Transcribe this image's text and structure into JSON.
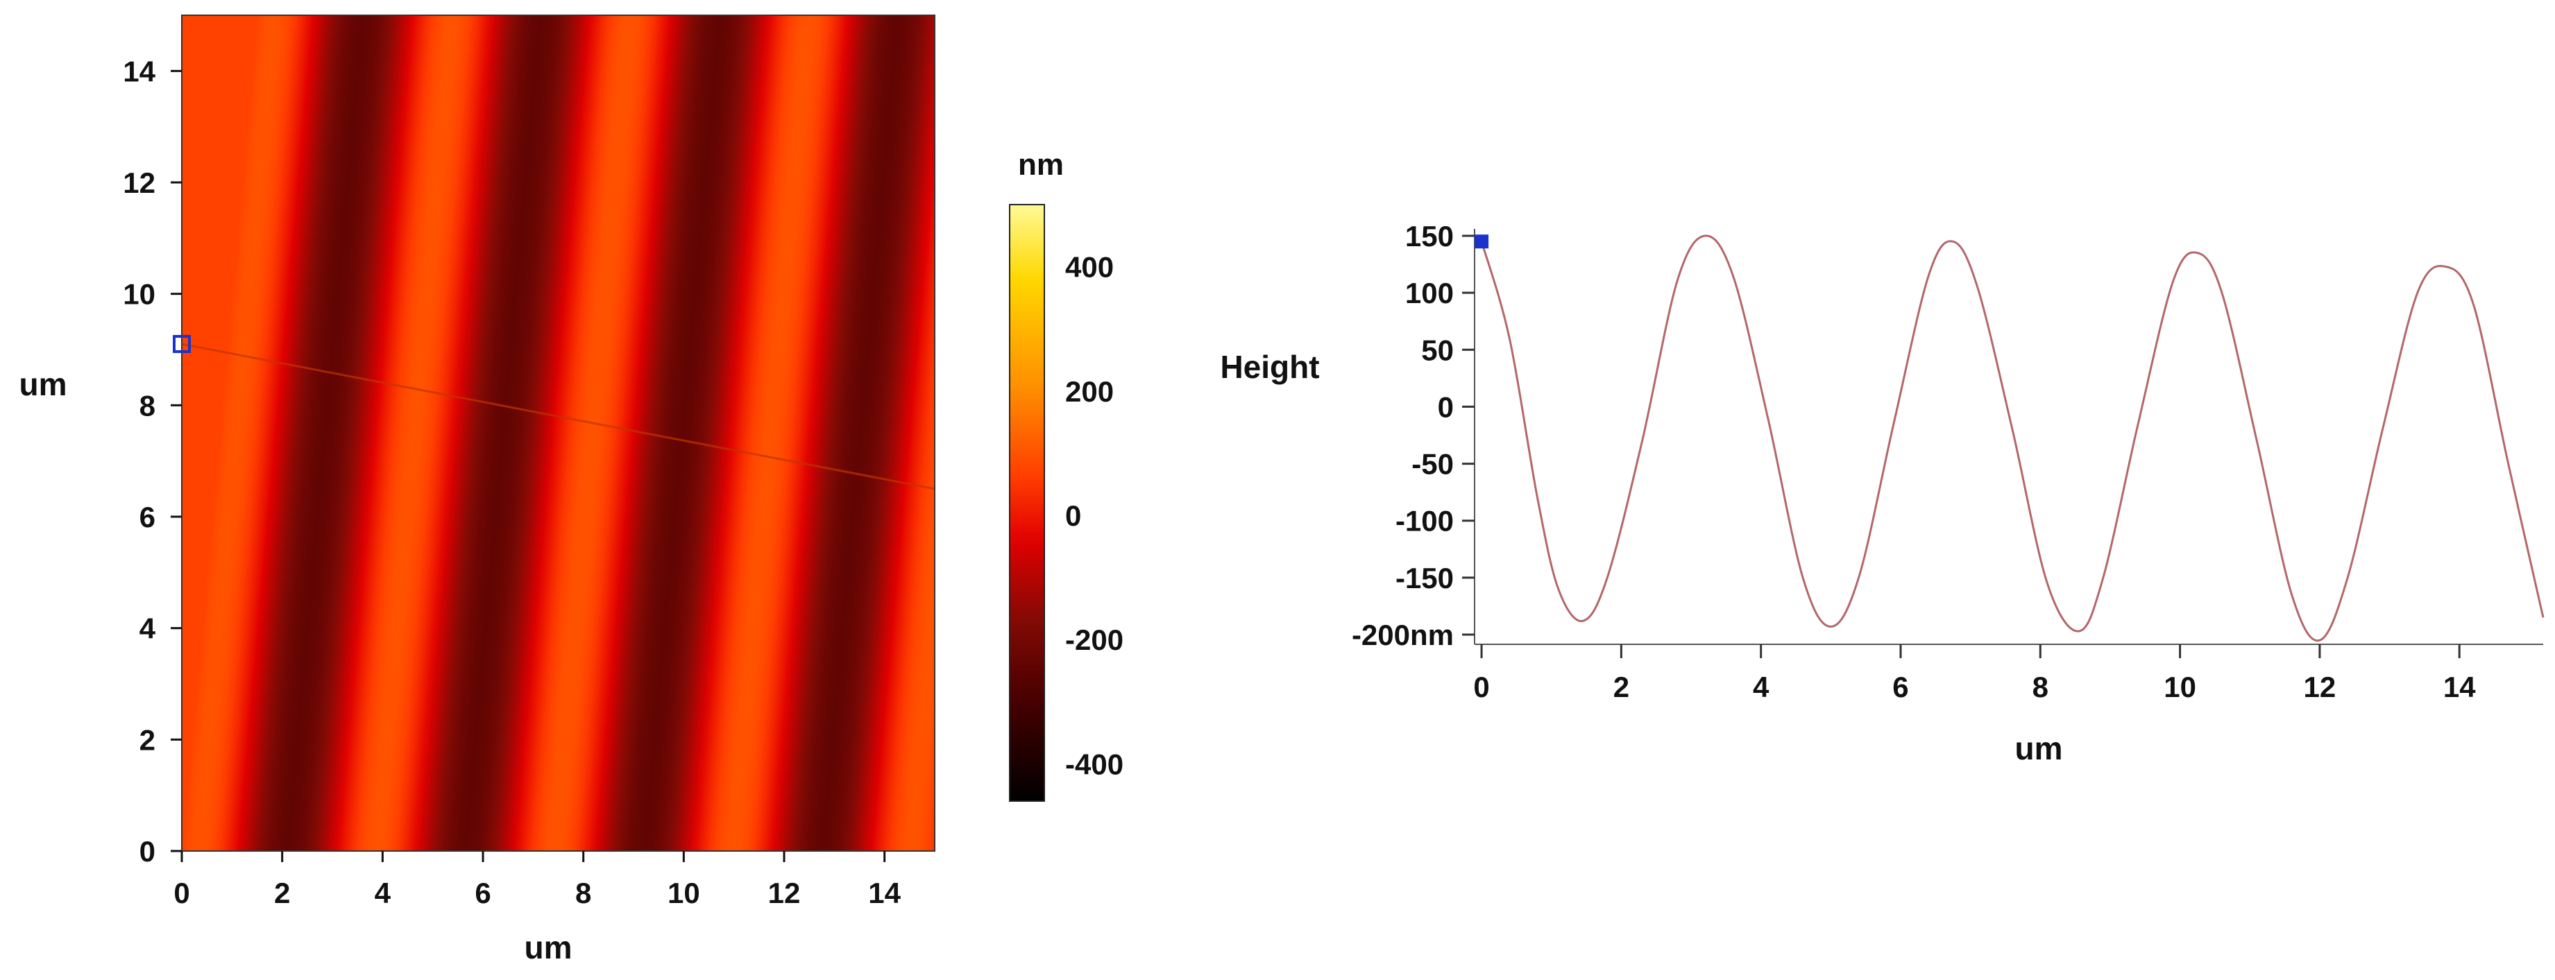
{
  "chart_data": [
    {
      "type": "heatmap",
      "title": "",
      "xlabel": "um",
      "ylabel": "um",
      "xlim": [
        0,
        15
      ],
      "ylim": [
        0,
        15
      ],
      "xticks": [
        0,
        2,
        4,
        6,
        8,
        10,
        12,
        14
      ],
      "yticks": [
        0,
        2,
        4,
        6,
        8,
        10,
        12,
        14
      ],
      "pattern": {
        "description_values": "stripes of height varying sinusoidally across x",
        "period_um": 3.55,
        "amplitude_nm": 170,
        "stripe_slope_x_per_y": 0.1
      },
      "profile_line": {
        "x": [
          0,
          15
        ],
        "y": [
          9.1,
          6.5
        ]
      },
      "marker": {
        "x": 0,
        "y": 9.1,
        "color": "#1a33cc"
      },
      "colorbar": {
        "label": "nm",
        "ticks": [
          400,
          200,
          0,
          -200,
          -400
        ],
        "range": [
          -460,
          500
        ],
        "colors": [
          "#000000",
          "#6a0000",
          "#e10000",
          "#ff4a00",
          "#ff8a00",
          "#ffd200",
          "#fff39a"
        ]
      }
    },
    {
      "type": "line",
      "title": "",
      "xlabel": "um",
      "ylabel": "Height",
      "xlim": [
        -0.1,
        15.2
      ],
      "ylim": [
        -200,
        150
      ],
      "xticks": [
        0,
        2,
        4,
        6,
        8,
        10,
        12,
        14
      ],
      "yticks": [
        150,
        100,
        50,
        0,
        -50,
        -100,
        -150,
        -200
      ],
      "ytick_labels": [
        "150",
        "100",
        "50",
        "0",
        "-50",
        "-100",
        "-150",
        "-200nm"
      ],
      "series": [
        {
          "color": "#b3676b",
          "x": [
            0,
            0.4,
            0.8,
            1.1,
            1.45,
            1.8,
            2.3,
            2.8,
            3.2,
            3.6,
            4.1,
            4.6,
            5.0,
            5.4,
            5.9,
            6.4,
            6.75,
            7.1,
            7.6,
            8.1,
            8.55,
            8.9,
            9.4,
            9.9,
            10.25,
            10.6,
            11.1,
            11.6,
            12.0,
            12.4,
            12.9,
            13.4,
            13.8,
            14.2,
            14.7,
            15.2
          ],
          "y": [
            145,
            60,
            -80,
            -160,
            -188,
            -150,
            -30,
            110,
            150,
            115,
            -10,
            -150,
            -193,
            -150,
            -15,
            115,
            145,
            105,
            -20,
            -155,
            -197,
            -150,
            -15,
            110,
            135,
            100,
            -30,
            -165,
            -205,
            -150,
            -20,
            100,
            123,
            90,
            -50,
            -185
          ]
        }
      ],
      "marker": {
        "x": 0,
        "y": 145,
        "color": "#1a33cc"
      }
    }
  ]
}
